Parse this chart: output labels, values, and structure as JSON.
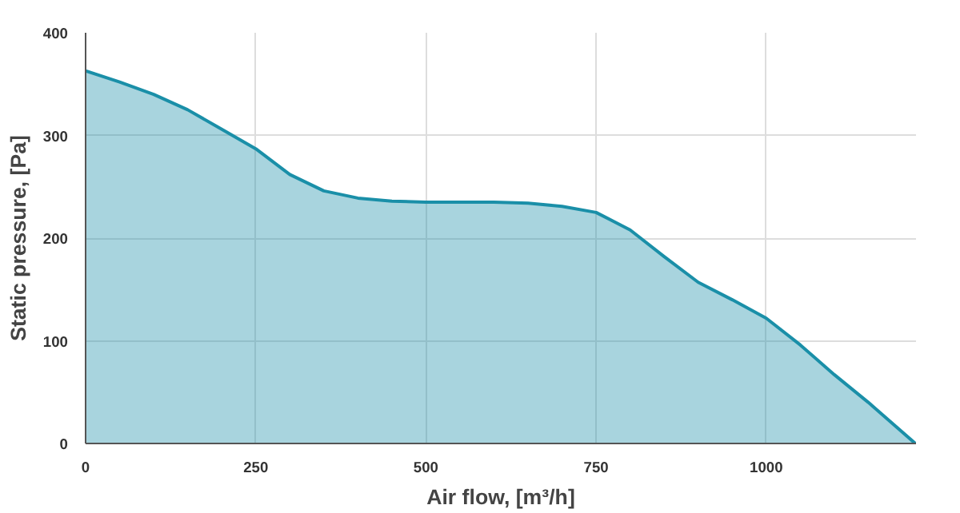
{
  "chart_data": {
    "type": "area",
    "xlabel": "Air flow, [m³/h]",
    "ylabel": "Static pressure, [Pa]",
    "x": [
      0,
      50,
      100,
      150,
      200,
      250,
      300,
      350,
      400,
      450,
      500,
      550,
      600,
      650,
      700,
      750,
      800,
      850,
      900,
      950,
      1000,
      1050,
      1100,
      1150,
      1219
    ],
    "series": [
      {
        "color": "#1a8fa8",
        "values": [
          363,
          352,
          340,
          325,
          306,
          287,
          262,
          246,
          239,
          236,
          235,
          235,
          235,
          234,
          231,
          225,
          208,
          182,
          157,
          140,
          122,
          96,
          67,
          40,
          0
        ]
      }
    ],
    "xlim": [
      0,
      1220
    ],
    "ylim": [
      0,
      400
    ],
    "xticks": [
      0,
      250,
      500,
      750,
      1000
    ],
    "yticks": [
      0,
      100,
      200,
      300,
      400
    ],
    "grid": true
  }
}
